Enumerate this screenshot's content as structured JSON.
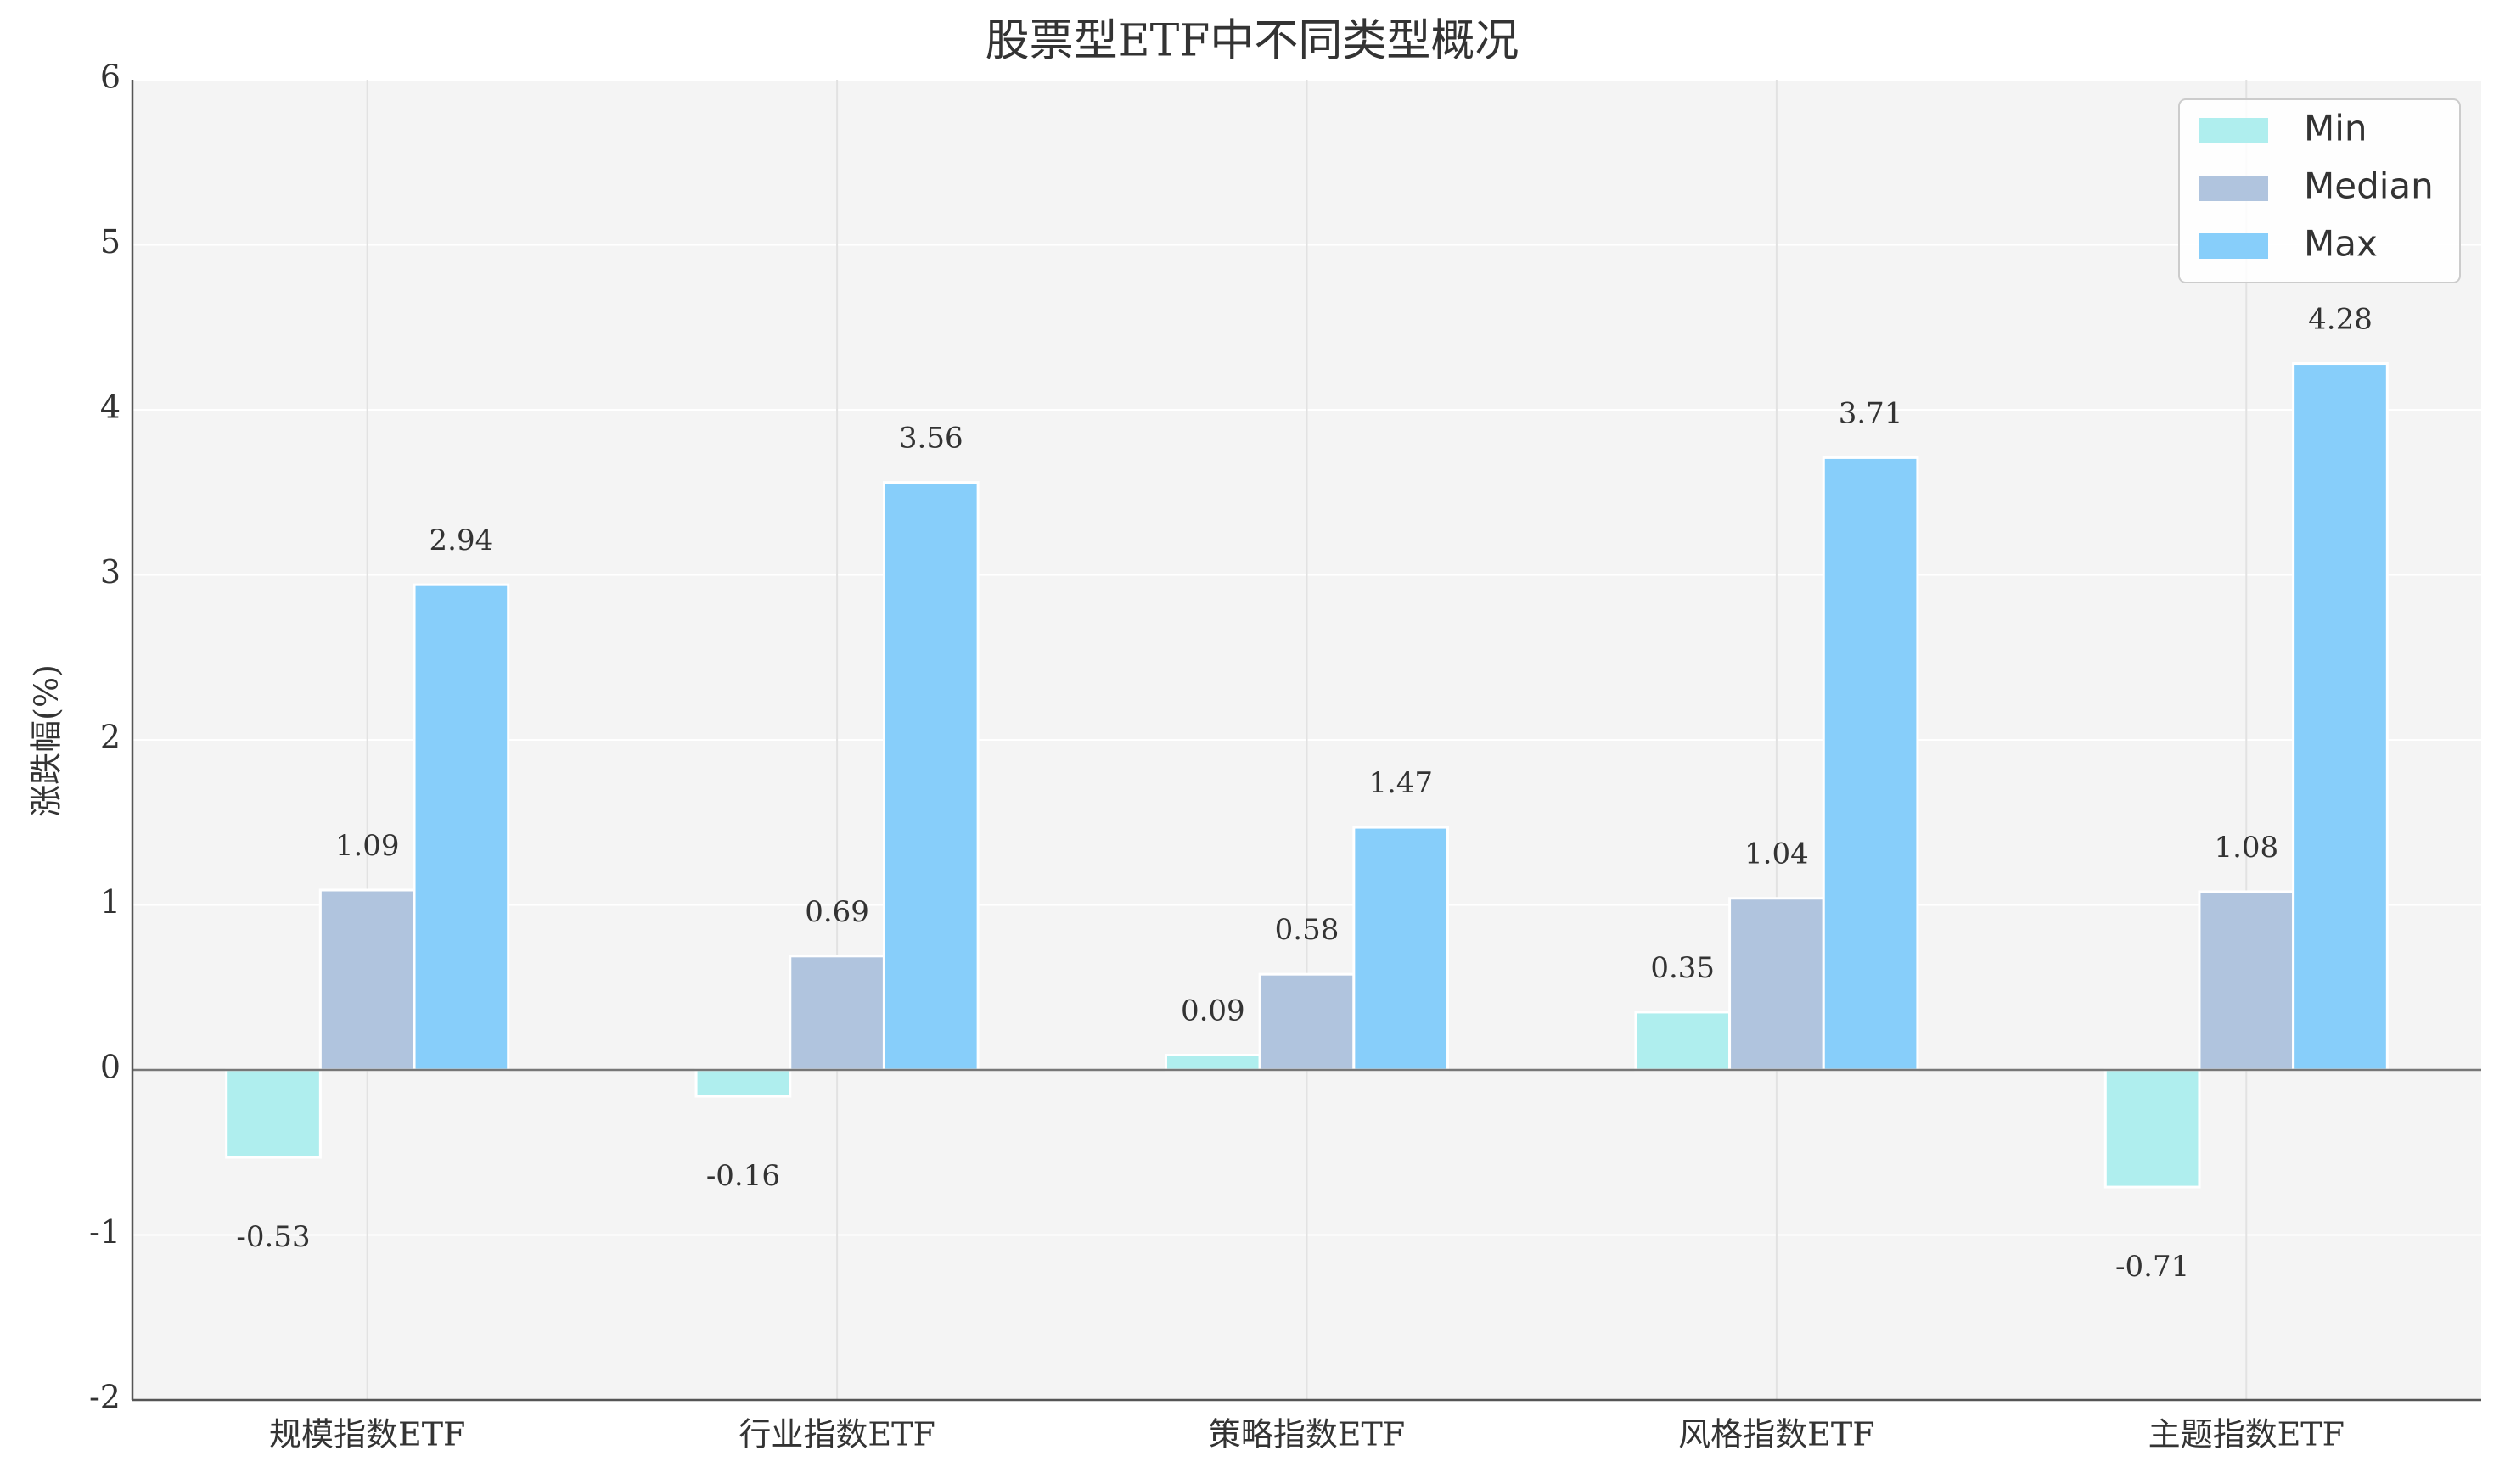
{
  "chart_data": {
    "type": "bar",
    "title": "股票型ETF中不同类型概况",
    "y_label": "涨跌幅(%)",
    "categories": [
      "规模指数ETF",
      "行业指数ETF",
      "策略指数ETF",
      "风格指数ETF",
      "主题指数ETF"
    ],
    "series": [
      {
        "name": "Min",
        "color": "#afeeee",
        "values": [
          -0.53,
          -0.16,
          0.09,
          0.35,
          -0.71
        ]
      },
      {
        "name": "Median",
        "color": "#b0c4de",
        "values": [
          1.09,
          0.69,
          0.58,
          1.04,
          1.08
        ]
      },
      {
        "name": "Max",
        "color": "#87cefa",
        "values": [
          2.94,
          3.56,
          1.47,
          3.71,
          4.28
        ]
      }
    ],
    "ylim": [
      -2,
      6
    ],
    "yticks": [
      -2,
      -1,
      0,
      1,
      2,
      3,
      4,
      5,
      6
    ],
    "grid": true,
    "legend": "upper right"
  }
}
